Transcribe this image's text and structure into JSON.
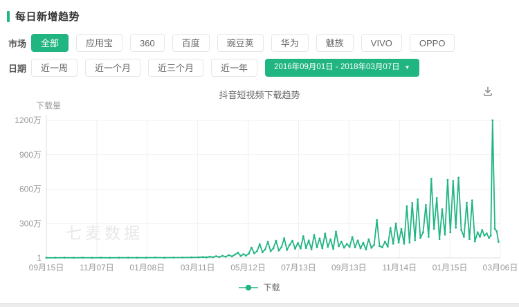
{
  "section": {
    "title": "每日新增趋势"
  },
  "filters": {
    "market": {
      "label": "市场",
      "options": [
        "全部",
        "应用宝",
        "360",
        "百度",
        "豌豆荚",
        "华为",
        "魅族",
        "VIVO",
        "OPPO"
      ],
      "selected": "全部"
    },
    "date": {
      "label": "日期",
      "presets": [
        "近一周",
        "近一个月",
        "近三个月",
        "近一年"
      ],
      "range": "2016年09月01日 - 2018年03月07日"
    }
  },
  "icons": {
    "caret_down": "▼",
    "download": "tray-arrow-down"
  },
  "watermark": "七麦数据",
  "colors": {
    "accent": "#21b582",
    "line": "#21b582",
    "grid": "#f0f0f0",
    "axis": "#dcdcdc",
    "tick_text": "#999999",
    "secondary_text": "#666666",
    "watermark": "#e8e8e8"
  },
  "chart_data": {
    "type": "line",
    "title": "抖音短视频下载趋势",
    "ylabel": "下载量",
    "units": "万",
    "y_max_wan": 1200,
    "y_ticks": [
      "1200万",
      "900万",
      "600万",
      "300万",
      "1"
    ],
    "x_ticks": [
      "09月15日",
      "11月07日",
      "01月08日",
      "03月11日",
      "05月12日",
      "07月13日",
      "09月13日",
      "11月14日",
      "01月15日",
      "03月06日"
    ],
    "x_range_label": "2016年09月01日 - 2018年03月07日",
    "grid": true,
    "legend_position": "bottom",
    "legend": [
      {
        "name": "下载",
        "color": "#21b582"
      }
    ],
    "series": [
      {
        "name": "下载",
        "color": "#21b582",
        "points_format": "[x_percent_of_axis, downloads_wan]",
        "points": [
          [
            0,
            1
          ],
          [
            2,
            1
          ],
          [
            4,
            2
          ],
          [
            6,
            1
          ],
          [
            8,
            2
          ],
          [
            10,
            1
          ],
          [
            12,
            2
          ],
          [
            14,
            1
          ],
          [
            16,
            2
          ],
          [
            18,
            2
          ],
          [
            20,
            2
          ],
          [
            22,
            2
          ],
          [
            24,
            3
          ],
          [
            26,
            2
          ],
          [
            28,
            3
          ],
          [
            30,
            3
          ],
          [
            32,
            4
          ],
          [
            33.5,
            5
          ],
          [
            34.5,
            7
          ],
          [
            35.3,
            5
          ],
          [
            36,
            11
          ],
          [
            36.7,
            6
          ],
          [
            37.4,
            15
          ],
          [
            38.1,
            8
          ],
          [
            38.8,
            18
          ],
          [
            39.5,
            10
          ],
          [
            40.2,
            24
          ],
          [
            40.9,
            13
          ],
          [
            41.6,
            30
          ],
          [
            42.2,
            46
          ],
          [
            42.8,
            17
          ],
          [
            43.4,
            32
          ],
          [
            44,
            20
          ],
          [
            44.6,
            38
          ],
          [
            45.2,
            90
          ],
          [
            45.8,
            40
          ],
          [
            46.4,
            58
          ],
          [
            47,
            120
          ],
          [
            47.6,
            50
          ],
          [
            48.2,
            74
          ],
          [
            48.8,
            140
          ],
          [
            49.4,
            58
          ],
          [
            50,
            84
          ],
          [
            50.6,
            150
          ],
          [
            51.2,
            64
          ],
          [
            51.8,
            94
          ],
          [
            52.4,
            172
          ],
          [
            53,
            70
          ],
          [
            53.6,
            114
          ],
          [
            54.2,
            150
          ],
          [
            54.8,
            80
          ],
          [
            55.4,
            130
          ],
          [
            56,
            82
          ],
          [
            56.6,
            190
          ],
          [
            57.2,
            86
          ],
          [
            57.8,
            152
          ],
          [
            58.4,
            74
          ],
          [
            59,
            200
          ],
          [
            59.6,
            92
          ],
          [
            60.2,
            170
          ],
          [
            60.8,
            84
          ],
          [
            61.4,
            212
          ],
          [
            62,
            96
          ],
          [
            62.6,
            162
          ],
          [
            63.2,
            78
          ],
          [
            63.8,
            230
          ],
          [
            64.4,
            102
          ],
          [
            65,
            142
          ],
          [
            65.6,
            90
          ],
          [
            66.2,
            122
          ],
          [
            66.8,
            96
          ],
          [
            67.4,
            182
          ],
          [
            68,
            92
          ],
          [
            68.6,
            152
          ],
          [
            69.2,
            84
          ],
          [
            69.8,
            132
          ],
          [
            70.4,
            74
          ],
          [
            71,
            162
          ],
          [
            71.6,
            88
          ],
          [
            72.2,
            112
          ],
          [
            72.8,
            330
          ],
          [
            73.4,
            104
          ],
          [
            74,
            92
          ],
          [
            74.6,
            142
          ],
          [
            75.2,
            98
          ],
          [
            75.8,
            262
          ],
          [
            76.4,
            124
          ],
          [
            77,
            300
          ],
          [
            77.6,
            134
          ],
          [
            78.2,
            252
          ],
          [
            78.8,
            124
          ],
          [
            79.4,
            450
          ],
          [
            80,
            134
          ],
          [
            80.6,
            480
          ],
          [
            81.2,
            154
          ],
          [
            81.8,
            510
          ],
          [
            82.4,
            174
          ],
          [
            83,
            224
          ],
          [
            83.6,
            462
          ],
          [
            84.2,
            184
          ],
          [
            84.8,
            690
          ],
          [
            85.4,
            254
          ],
          [
            86,
            522
          ],
          [
            86.6,
            164
          ],
          [
            87.2,
            424
          ],
          [
            87.8,
            204
          ],
          [
            88.4,
            680
          ],
          [
            89,
            224
          ],
          [
            89.6,
            672
          ],
          [
            90.2,
            264
          ],
          [
            90.8,
            700
          ],
          [
            91.4,
            244
          ],
          [
            92,
            184
          ],
          [
            92.6,
            482
          ],
          [
            93.2,
            164
          ],
          [
            93.8,
            502
          ],
          [
            94.4,
            144
          ],
          [
            95,
            224
          ],
          [
            95.5,
            184
          ],
          [
            96,
            244
          ],
          [
            96.5,
            194
          ],
          [
            97,
            214
          ],
          [
            97.5,
            174
          ],
          [
            97.9,
            194
          ],
          [
            98.3,
            1200
          ],
          [
            98.8,
            254
          ],
          [
            99.2,
            232
          ],
          [
            99.6,
            140
          ]
        ]
      }
    ]
  }
}
